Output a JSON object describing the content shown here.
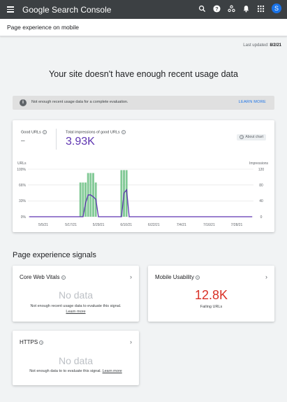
{
  "app": {
    "title": "Google Search Console",
    "avatar_letter": "S",
    "icons": [
      "menu-icon",
      "search-icon",
      "help-icon",
      "people-icon",
      "notifications-icon",
      "apps-icon"
    ]
  },
  "page": {
    "title": "Page experience on mobile",
    "last_updated_label": "Last updated:",
    "last_updated_value": "8/2/21",
    "headline": "Your site doesn't have enough recent usage data"
  },
  "banner": {
    "text": "Not enough recent usage data for a complete evaluation.",
    "action": "LEARN MORE"
  },
  "metrics": {
    "good_urls_label": "Good URLs",
    "good_urls_value": "–",
    "total_impressions_label": "Total impressions of good URLs",
    "total_impressions_value": "3.93K",
    "about_chart": "About chart"
  },
  "chart_data": {
    "type": "bar",
    "left_axis_label": "URLs",
    "right_axis_label": "Impressions",
    "left_ticks": [
      "100%",
      "66%",
      "33%",
      "0%"
    ],
    "right_ticks": [
      "120",
      "80",
      "40",
      "0"
    ],
    "x_ticks": [
      "5/5/21",
      "5/17/21",
      "5/29/21",
      "6/10/21",
      "6/22/21",
      "7/4/21",
      "7/16/21",
      "7/28/21"
    ],
    "good_urls_pct": [
      0,
      0,
      0,
      0,
      0,
      0,
      0,
      0,
      0,
      0,
      0,
      0,
      0,
      0,
      0,
      0,
      0,
      0,
      0,
      0,
      72,
      72,
      72,
      92,
      92,
      92,
      72,
      0,
      0,
      0,
      0,
      0,
      0,
      0,
      0,
      0,
      98,
      98,
      98,
      0,
      0,
      0,
      0,
      0,
      0,
      0,
      0,
      0,
      0,
      0,
      0,
      0,
      0,
      0,
      0,
      0,
      0,
      0,
      0,
      0,
      0,
      0,
      0,
      0,
      0,
      0,
      0,
      0,
      0,
      0,
      0,
      0,
      0,
      0,
      0,
      0,
      0,
      0,
      0,
      0,
      0,
      0,
      0,
      0,
      0,
      0,
      0,
      0
    ],
    "impressions": [
      0,
      0,
      0,
      0,
      0,
      0,
      0,
      0,
      0,
      0,
      0,
      0,
      0,
      0,
      0,
      0,
      0,
      0,
      0,
      0,
      0,
      0,
      35,
      55,
      55,
      50,
      44,
      0,
      0,
      0,
      0,
      0,
      0,
      0,
      0,
      0,
      0,
      60,
      68,
      0,
      0,
      0,
      0,
      0,
      0,
      0,
      0,
      0,
      0,
      0,
      0,
      0,
      0,
      0,
      0,
      0,
      0,
      0,
      0,
      0,
      0,
      0,
      0,
      0,
      0,
      0,
      0,
      0,
      0,
      0,
      0,
      0,
      0,
      0,
      0,
      0,
      0,
      0,
      0,
      0,
      0,
      0,
      0,
      0,
      0,
      0,
      0,
      0
    ],
    "ylim_left": [
      0,
      100
    ],
    "ylim_right": [
      0,
      120
    ],
    "colors": {
      "bars": "#81c995",
      "line": "#5e35b1",
      "baseline": "#5e35b1"
    }
  },
  "signals": {
    "section_title": "Page experience signals",
    "core_web_vitals": {
      "title": "Core Web Vitals",
      "nodata": "No data",
      "desc": "Not enough recent usage data to evaluate this signal.",
      "link": "Learn more"
    },
    "mobile_usability": {
      "title": "Mobile Usability",
      "value": "12.8K",
      "caption": "Failing URLs"
    },
    "https": {
      "title": "HTTPS",
      "nodata": "No data",
      "desc": "Not enough data to to evaluate this signal.",
      "link": "Learn more"
    }
  }
}
